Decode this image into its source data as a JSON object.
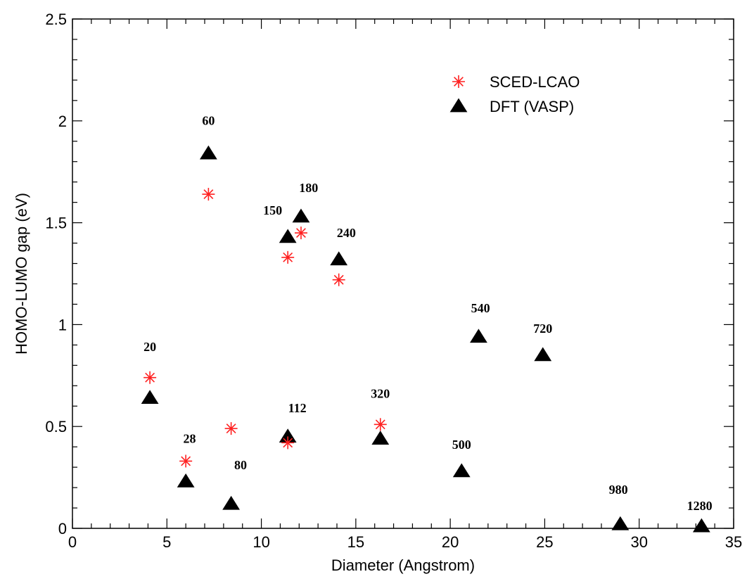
{
  "chart_data": {
    "type": "scatter",
    "title": "",
    "xlabel": "Diameter (Angstrom)",
    "ylabel": "HOMO-LUMO gap (eV)",
    "xlim": [
      0,
      35
    ],
    "ylim": [
      0,
      2.5
    ],
    "x_ticks": [
      0,
      5,
      10,
      15,
      20,
      25,
      30,
      35
    ],
    "y_ticks": [
      0,
      0.5,
      1,
      1.5,
      2,
      2.5
    ],
    "x_tick_labels": [
      "0",
      "5",
      "10",
      "15",
      "20",
      "25",
      "30",
      "35"
    ],
    "y_tick_labels": [
      "0",
      "0.5",
      "1",
      "1.5",
      "2",
      "2.5"
    ],
    "grid": false,
    "legend_position": "top-right",
    "series": [
      {
        "name": "SCED-LCAO",
        "marker": "asterisk",
        "color": "#ff2020",
        "points": [
          {
            "x": 4.1,
            "y": 0.74
          },
          {
            "x": 6.0,
            "y": 0.33
          },
          {
            "x": 7.2,
            "y": 1.64
          },
          {
            "x": 8.4,
            "y": 0.49
          },
          {
            "x": 11.4,
            "y": 0.42
          },
          {
            "x": 11.4,
            "y": 1.33
          },
          {
            "x": 12.1,
            "y": 1.45
          },
          {
            "x": 14.1,
            "y": 1.22
          },
          {
            "x": 16.3,
            "y": 0.51
          }
        ]
      },
      {
        "name": "DFT (VASP)",
        "marker": "triangle",
        "color": "#000000",
        "points": [
          {
            "x": 4.1,
            "y": 0.64
          },
          {
            "x": 6.0,
            "y": 0.23
          },
          {
            "x": 7.2,
            "y": 1.84
          },
          {
            "x": 8.4,
            "y": 0.12
          },
          {
            "x": 11.4,
            "y": 0.45
          },
          {
            "x": 11.4,
            "y": 1.43
          },
          {
            "x": 12.1,
            "y": 1.53
          },
          {
            "x": 14.1,
            "y": 1.32
          },
          {
            "x": 16.3,
            "y": 0.44
          },
          {
            "x": 20.6,
            "y": 0.28
          },
          {
            "x": 21.5,
            "y": 0.94
          },
          {
            "x": 24.9,
            "y": 0.85
          },
          {
            "x": 29.0,
            "y": 0.02
          },
          {
            "x": 33.3,
            "y": 0.01
          }
        ]
      }
    ],
    "annotations": [
      {
        "text": "20",
        "x": 4.1,
        "y": 0.87
      },
      {
        "text": "28",
        "x": 6.2,
        "y": 0.42
      },
      {
        "text": "60",
        "x": 7.2,
        "y": 1.98
      },
      {
        "text": "80",
        "x": 8.9,
        "y": 0.29
      },
      {
        "text": "112",
        "x": 11.9,
        "y": 0.57
      },
      {
        "text": "150",
        "x": 10.6,
        "y": 1.54
      },
      {
        "text": "180",
        "x": 12.5,
        "y": 1.65
      },
      {
        "text": "240",
        "x": 14.5,
        "y": 1.43
      },
      {
        "text": "320",
        "x": 16.3,
        "y": 0.64
      },
      {
        "text": "500",
        "x": 20.6,
        "y": 0.39
      },
      {
        "text": "540",
        "x": 21.6,
        "y": 1.06
      },
      {
        "text": "720",
        "x": 24.9,
        "y": 0.96
      },
      {
        "text": "980",
        "x": 28.9,
        "y": 0.17
      },
      {
        "text": "1280",
        "x": 33.2,
        "y": 0.09
      }
    ]
  }
}
